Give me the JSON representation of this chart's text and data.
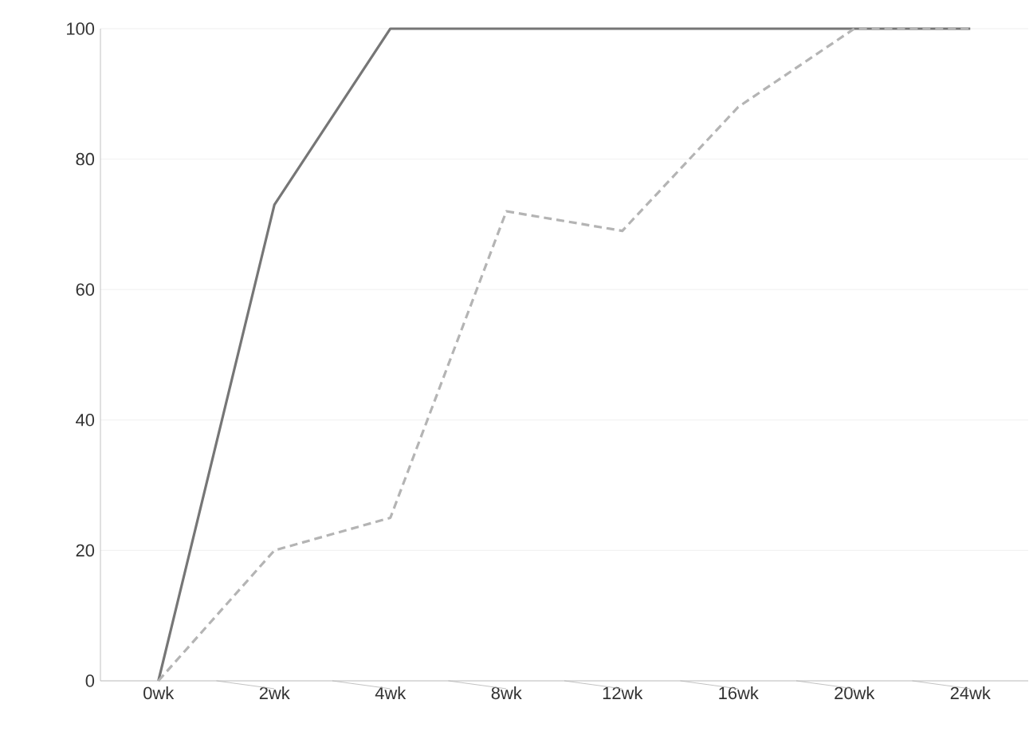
{
  "chart_data": {
    "type": "line",
    "categories": [
      "0wk",
      "2wk",
      "4wk",
      "8wk",
      "12wk",
      "16wk",
      "20wk",
      "24wk"
    ],
    "series": [
      {
        "color": "#767676",
        "line_style": "solid",
        "values": [
          0,
          73,
          100,
          100,
          100,
          100,
          100,
          100
        ]
      },
      {
        "color": "#b4b4b4",
        "line_style": "dashed",
        "values": [
          0,
          20,
          25,
          72,
          69,
          88,
          100,
          100
        ]
      }
    ],
    "ylim": [
      0,
      100
    ],
    "yticks": [
      0,
      20,
      40,
      60,
      80,
      100
    ],
    "grid": "y",
    "marker": "none"
  }
}
